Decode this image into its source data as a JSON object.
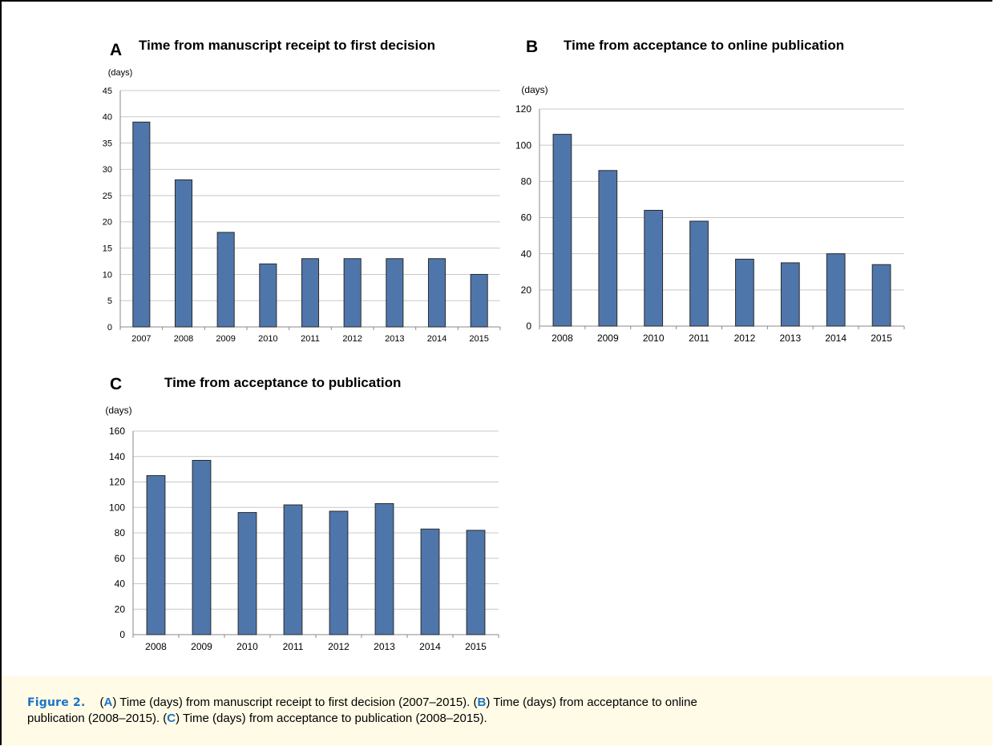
{
  "panels": {
    "A": {
      "letter": "A",
      "title": "Time from manuscript receipt to first decision"
    },
    "B": {
      "letter": "B",
      "title": "Time from acceptance to online publication"
    },
    "C": {
      "letter": "C",
      "title": "Time from acceptance to publication"
    }
  },
  "caption": {
    "label": "Figure 2.",
    "part_a_letter": "A",
    "part_a_text": ") Time (days) from manuscript receipt to first decision (2007–2015). (",
    "part_b_letter": "B",
    "part_b_text": ") Time (days) from acceptance to online",
    "part_b_text2": "publication (2008–2015). (",
    "part_c_letter": "C",
    "part_c_text": ") Time (days) from acceptance to publication (2008–2015).",
    "open_paren": "("
  },
  "colors": {
    "bar_fill": "#4f76ab",
    "bar_stroke": "#2a2a2a",
    "grid": "#c8c8c8",
    "caption_accent": "#1a73c8"
  },
  "chart_data": [
    {
      "type": "bar",
      "id": "A",
      "title": "Time from manuscript receipt to first decision",
      "ylabel": "(days)",
      "categories": [
        "2007",
        "2008",
        "2009",
        "2010",
        "2011",
        "2012",
        "2013",
        "2014",
        "2015"
      ],
      "values": [
        39,
        28,
        18,
        12,
        13,
        13,
        13,
        13,
        10
      ],
      "ylim": [
        0,
        45
      ],
      "yticks": [
        0,
        5,
        10,
        15,
        20,
        25,
        30,
        35,
        40,
        45
      ],
      "grid": true
    },
    {
      "type": "bar",
      "id": "B",
      "title": "Time from acceptance to online publication",
      "ylabel": "(days)",
      "categories": [
        "2008",
        "2009",
        "2010",
        "2011",
        "2012",
        "2013",
        "2014",
        "2015"
      ],
      "values": [
        106,
        86,
        64,
        58,
        37,
        35,
        40,
        34
      ],
      "ylim": [
        0,
        120
      ],
      "yticks": [
        0,
        20,
        40,
        60,
        80,
        100,
        120
      ],
      "grid": true
    },
    {
      "type": "bar",
      "id": "C",
      "title": "Time from acceptance to publication",
      "ylabel": "(days)",
      "categories": [
        "2008",
        "2009",
        "2010",
        "2011",
        "2012",
        "2013",
        "2014",
        "2015"
      ],
      "values": [
        125,
        137,
        96,
        102,
        97,
        103,
        83,
        82
      ],
      "ylim": [
        0,
        160
      ],
      "yticks": [
        0,
        20,
        40,
        60,
        80,
        100,
        120,
        140,
        160
      ],
      "grid": true
    }
  ]
}
